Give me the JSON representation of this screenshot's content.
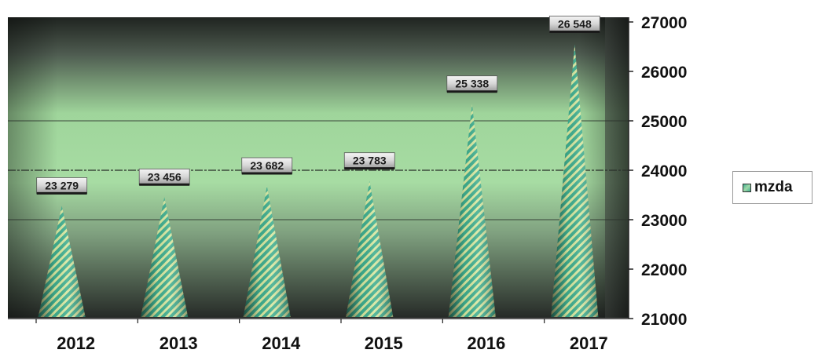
{
  "chart_data": {
    "type": "bar",
    "categories": [
      "2012",
      "2013",
      "2014",
      "2015",
      "2016",
      "2017"
    ],
    "series": [
      {
        "name": "mzda",
        "values": [
          23279,
          23456,
          23682,
          23783,
          25338,
          26548
        ],
        "labels": [
          "23 279",
          "23 456",
          "23 682",
          "23 783",
          "25 338",
          "26 548"
        ]
      }
    ],
    "ylim": [
      21000,
      27000
    ],
    "yticks": [
      "21000",
      "22000",
      "23000",
      "24000",
      "25000",
      "26000",
      "27000"
    ],
    "y_axis_side": "right",
    "bar_shape": "cone",
    "grid": true,
    "legend": "right",
    "title": "",
    "xlabel": "",
    "ylabel": "",
    "colors": {
      "cone_stripe_a": "#3fae8f",
      "cone_stripe_b": "#d8e8a0",
      "plot_mid": "#a9dca2",
      "plot_edge": "#2a2a2a"
    }
  }
}
